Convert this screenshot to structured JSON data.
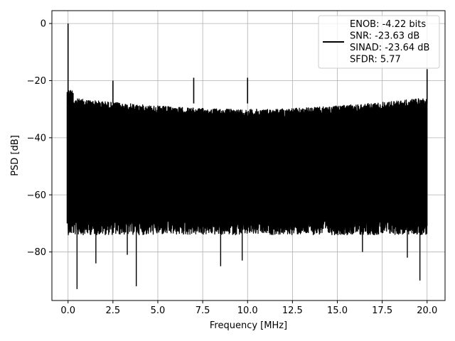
{
  "chart_data": {
    "type": "line",
    "xlabel": "Frequency [MHz]",
    "ylabel": "PSD [dB]",
    "xlim": [
      -0.9,
      21.0
    ],
    "ylim": [
      -97,
      4.5
    ],
    "xticks": [
      0.0,
      2.5,
      5.0,
      7.5,
      10.0,
      12.5,
      15.0,
      17.5,
      20.0
    ],
    "xtick_labels": [
      "0.0",
      "2.5",
      "5.0",
      "7.5",
      "10.0",
      "12.5",
      "15.0",
      "17.5",
      "20.0"
    ],
    "yticks": [
      0,
      -20,
      -40,
      -60,
      -80
    ],
    "ytick_labels": [
      "0",
      "−20",
      "−40",
      "−60",
      "−80"
    ],
    "grid": true,
    "legend_position": "top-right",
    "series": [
      {
        "name_lines": [
          "ENOB: -4.22 bits",
          "SNR: -23.63 dB",
          "SINAD: -23.64 dB",
          "SFDR: 5.77"
        ],
        "color": "#000000",
        "noise_floor": {
          "x_start": 0.0,
          "x_end": 20.0,
          "upper_db": -26,
          "lower_db": -68
        },
        "peaks": [
          {
            "x": 0.0,
            "y": 0.0
          },
          {
            "x": 2.5,
            "y": -20
          },
          {
            "x": 7.0,
            "y": -19
          },
          {
            "x": 10.0,
            "y": -19
          },
          {
            "x": 20.0,
            "y": -16
          }
        ],
        "dips": [
          {
            "x": 0.5,
            "y": -93
          },
          {
            "x": 1.55,
            "y": -84
          },
          {
            "x": 3.3,
            "y": -81
          },
          {
            "x": 3.8,
            "y": -92
          },
          {
            "x": 8.5,
            "y": -85
          },
          {
            "x": 9.7,
            "y": -83
          },
          {
            "x": 19.6,
            "y": -90
          },
          {
            "x": 16.4,
            "y": -80
          },
          {
            "x": 18.9,
            "y": -82
          }
        ]
      }
    ]
  }
}
